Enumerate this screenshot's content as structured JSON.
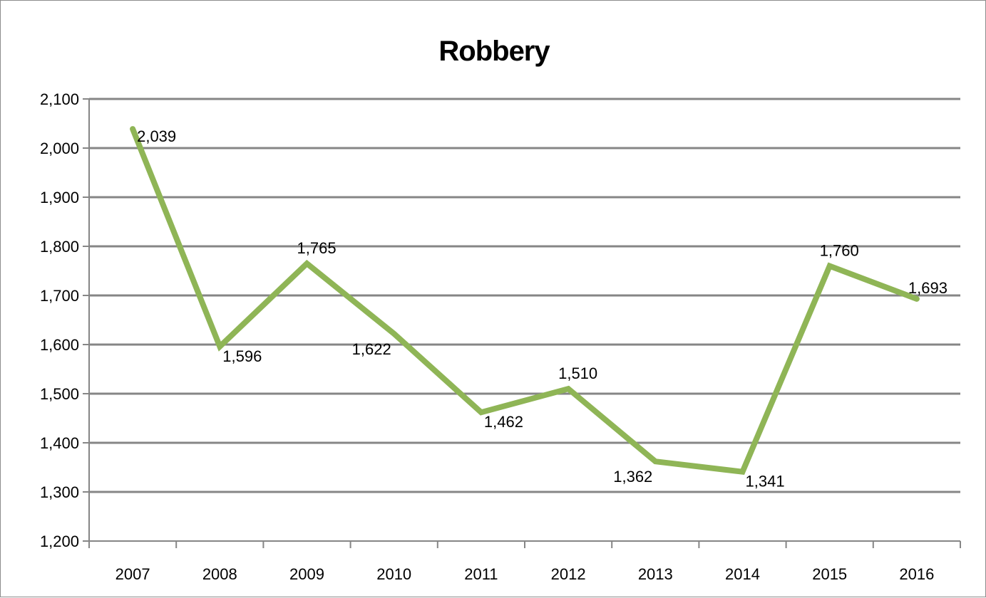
{
  "chart_data": {
    "type": "line",
    "title": "Robbery",
    "xlabel": "",
    "ylabel": "",
    "categories": [
      "2007",
      "2008",
      "2009",
      "2010",
      "2011",
      "2012",
      "2013",
      "2014",
      "2015",
      "2016"
    ],
    "series": [
      {
        "values": [
          2039,
          1596,
          1765,
          1622,
          1462,
          1510,
          1362,
          1341,
          1760,
          1693
        ],
        "labels": [
          "2,039",
          "1,596",
          "1,765",
          "1,622",
          "1,462",
          "1,510",
          "1,362",
          "1,341",
          "1,760",
          "1,693"
        ],
        "color": "#8fb556"
      }
    ],
    "ylim": [
      1200,
      2100
    ],
    "yticks": [
      1200,
      1300,
      1400,
      1500,
      1600,
      1700,
      1800,
      1900,
      2000,
      2100
    ],
    "ytick_labels": [
      "1,200",
      "1,300",
      "1,400",
      "1,500",
      "1,600",
      "1,700",
      "1,800",
      "1,900",
      "2,000",
      "2,100"
    ],
    "grid": true,
    "gridline_color": "#868686",
    "legend": "none"
  }
}
